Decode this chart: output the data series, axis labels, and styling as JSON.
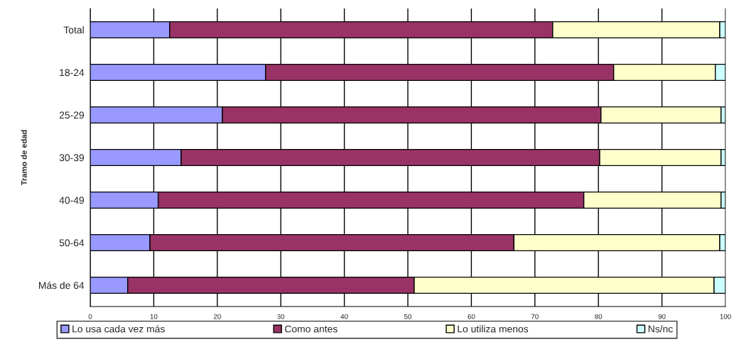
{
  "chart_data": {
    "type": "bar",
    "orientation": "horizontal",
    "stacked": true,
    "ylabel": "Tramo de edad",
    "categories": [
      "Total",
      "18-24",
      "25-29",
      "30-39",
      "40-49",
      "50-64",
      "Más de 64"
    ],
    "series": [
      {
        "name": "Lo usa cada vez más",
        "color": "#9999ff",
        "values": [
          12.5,
          27.6,
          20.8,
          14.3,
          10.7,
          9.4,
          5.9
        ]
      },
      {
        "name": "Como antes",
        "color": "#993366",
        "values": [
          60.3,
          54.8,
          59.6,
          65.9,
          67.0,
          57.3,
          45.1
        ]
      },
      {
        "name": "Lo utiliza menos",
        "color": "#ffffcc",
        "values": [
          26.3,
          16.0,
          18.9,
          19.1,
          21.6,
          32.4,
          47.2
        ]
      },
      {
        "name": "Ns/nc",
        "color": "#ccffff",
        "values": [
          0.9,
          1.6,
          0.7,
          0.7,
          0.7,
          0.9,
          1.8
        ]
      }
    ],
    "xlim": [
      0,
      100
    ],
    "xticks": [
      0,
      10,
      20,
      30,
      40,
      50,
      60,
      70,
      80,
      90,
      100
    ],
    "grid": "x",
    "legend": "bottom"
  }
}
